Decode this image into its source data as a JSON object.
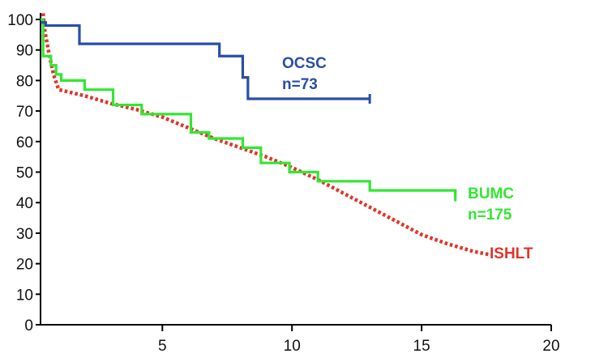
{
  "chart_data": {
    "type": "line",
    "step": true,
    "title": "",
    "xlabel": "",
    "ylabel": "",
    "xlim": [
      0.3,
      20
    ],
    "ylim": [
      0,
      100
    ],
    "xticks": [
      "5",
      "10",
      "15",
      "20"
    ],
    "yticks": [
      "0",
      "10",
      "20",
      "30",
      "40",
      "50",
      "60",
      "70",
      "80",
      "90",
      "100"
    ],
    "xtick_values": [
      5,
      10,
      15,
      20
    ],
    "ytick_values": [
      0,
      10,
      20,
      30,
      40,
      50,
      60,
      70,
      80,
      90,
      100
    ],
    "grid": false,
    "series": [
      {
        "id": "ocsc",
        "color": "#2a4ea6",
        "style": "step",
        "label_lines": [
          "OCSC",
          "n=73"
        ],
        "x": [
          0.3,
          0.5,
          1.8,
          7.2,
          8.1,
          8.3,
          13.0
        ],
        "y": [
          99,
          98,
          92,
          88,
          81,
          74,
          74
        ]
      },
      {
        "id": "bumc",
        "color": "#33e633",
        "style": "step",
        "label_lines": [
          "BUMC",
          "n=175"
        ],
        "x": [
          0.3,
          0.4,
          0.7,
          0.9,
          1.1,
          2.0,
          3.1,
          4.2,
          6.1,
          6.8,
          8.1,
          8.8,
          9.9,
          11.0,
          13.0,
          16.3
        ],
        "y": [
          100,
          88,
          85,
          82,
          80,
          77,
          72,
          69,
          63,
          61,
          58,
          53,
          50,
          47,
          44,
          42
        ]
      },
      {
        "id": "ishlt",
        "color": "#e0342a",
        "style": "dotted",
        "label_lines": [
          "ISHLT"
        ],
        "x": [
          0.4,
          0.45,
          0.6,
          0.8,
          1.0,
          2.0,
          3.0,
          4.0,
          5.0,
          6.0,
          7.0,
          8.0,
          9.0,
          10.0,
          11.0,
          12.0,
          13.0,
          14.0,
          15.0,
          16.0,
          17.0,
          17.6
        ],
        "y": [
          102,
          97,
          90,
          82,
          77,
          75,
          72.5,
          70.5,
          68,
          64.5,
          61,
          58,
          55,
          51.5,
          47.5,
          43,
          38.5,
          34,
          29.5,
          26.5,
          24,
          23
        ]
      }
    ],
    "legend": "inline-labels"
  }
}
